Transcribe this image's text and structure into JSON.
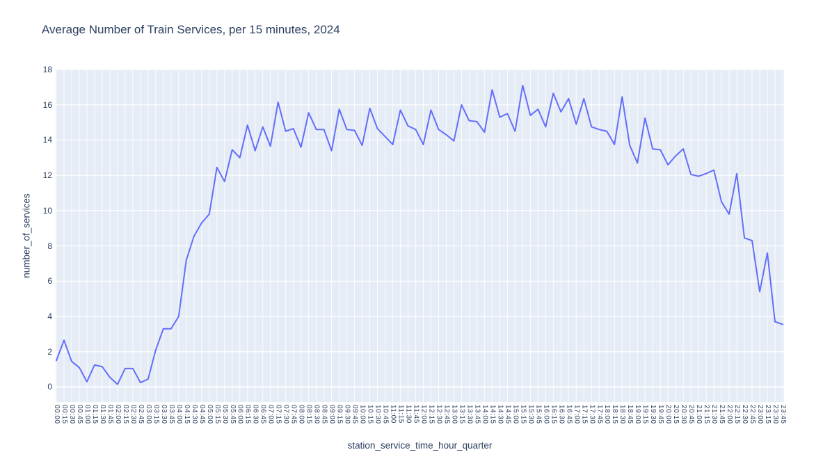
{
  "page": {
    "background": "#ffffff"
  },
  "chart_data": {
    "type": "line",
    "title": "Average Number of Train Services, per 15 minutes, 2024",
    "xlabel": "station_service_time_hour_quarter",
    "ylabel": "number_of_services",
    "legend_position": "none",
    "grid": true,
    "ylim": [
      -0.85,
      18
    ],
    "yticks": [
      0,
      2,
      4,
      6,
      8,
      10,
      12,
      14,
      16,
      18
    ],
    "colors": {
      "line": "#636efa",
      "plot_background": "#e5ecf6",
      "grid": "#ffffff",
      "text": "#2a3f5f"
    },
    "categories": [
      "00:00",
      "00:15",
      "00:30",
      "00:45",
      "01:00",
      "01:15",
      "01:30",
      "01:45",
      "02:00",
      "02:15",
      "02:30",
      "02:45",
      "03:00",
      "03:15",
      "03:30",
      "03:45",
      "04:00",
      "04:15",
      "04:30",
      "04:45",
      "05:00",
      "05:15",
      "05:30",
      "05:45",
      "06:00",
      "06:15",
      "06:30",
      "06:45",
      "07:00",
      "07:15",
      "07:30",
      "07:45",
      "08:00",
      "08:15",
      "08:30",
      "08:45",
      "09:00",
      "09:15",
      "09:30",
      "09:45",
      "10:00",
      "10:15",
      "10:30",
      "10:45",
      "11:00",
      "11:15",
      "11:30",
      "11:45",
      "12:00",
      "12:15",
      "12:30",
      "12:45",
      "13:00",
      "13:15",
      "13:30",
      "13:45",
      "14:00",
      "14:15",
      "14:30",
      "14:45",
      "15:00",
      "15:15",
      "15:30",
      "15:45",
      "16:00",
      "16:15",
      "16:30",
      "16:45",
      "17:00",
      "17:15",
      "17:30",
      "17:45",
      "18:00",
      "18:15",
      "18:30",
      "18:45",
      "19:00",
      "19:15",
      "19:30",
      "19:45",
      "20:00",
      "20:15",
      "20:30",
      "20:45",
      "21:00",
      "21:15",
      "21:30",
      "21:45",
      "22:00",
      "22:15",
      "22:30",
      "22:45",
      "23:00",
      "23:15",
      "23:30",
      "23:45"
    ],
    "values": [
      1.5,
      2.65,
      1.45,
      1.1,
      0.3,
      1.25,
      1.15,
      0.55,
      0.15,
      1.05,
      1.05,
      0.25,
      0.45,
      2.1,
      3.3,
      3.3,
      4.0,
      7.2,
      8.55,
      9.3,
      9.8,
      12.45,
      11.65,
      13.45,
      13.0,
      14.85,
      13.4,
      14.75,
      13.65,
      16.15,
      14.5,
      14.65,
      13.6,
      15.55,
      14.6,
      14.6,
      13.4,
      15.75,
      14.6,
      14.55,
      13.7,
      15.8,
      14.65,
      14.2,
      13.75,
      15.7,
      14.8,
      14.6,
      13.75,
      15.7,
      14.6,
      14.3,
      13.95,
      16.0,
      15.1,
      15.05,
      14.45,
      16.85,
      15.3,
      15.5,
      14.5,
      17.1,
      15.4,
      15.75,
      14.75,
      16.65,
      15.6,
      16.35,
      14.9,
      16.35,
      14.75,
      14.6,
      14.5,
      13.75,
      16.45,
      13.7,
      12.7,
      15.25,
      13.5,
      13.45,
      12.6,
      13.1,
      13.5,
      12.05,
      11.95,
      12.1,
      12.3,
      10.5,
      9.8,
      12.1,
      8.45,
      8.3,
      5.4,
      7.6,
      3.7,
      3.55
    ]
  }
}
